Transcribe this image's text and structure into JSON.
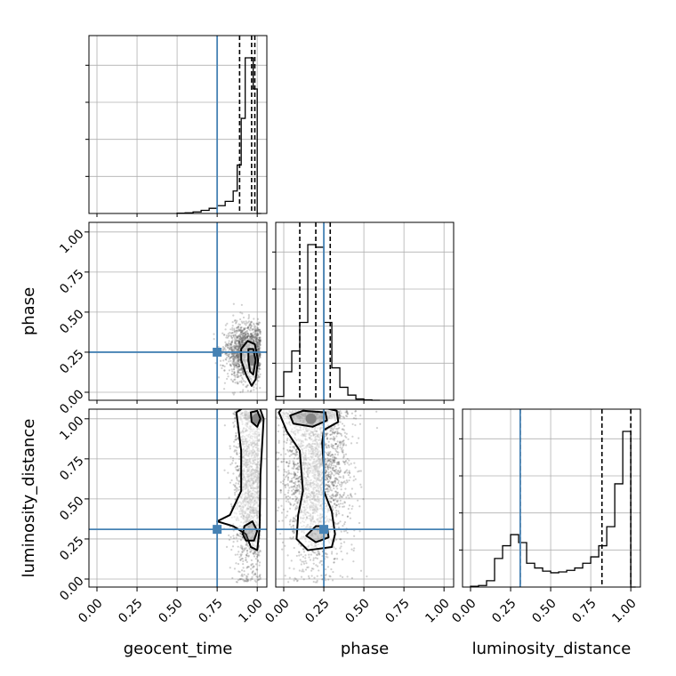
{
  "chart_data": {
    "type": "corner",
    "parameters": [
      "geocent_time",
      "phase",
      "luminosity_distance"
    ],
    "axis_labels": {
      "x": [
        "geocent_time",
        "phase",
        "luminosity_distance"
      ],
      "y": [
        "phase",
        "luminosity_distance"
      ]
    },
    "range": [
      -0.05,
      1.06
    ],
    "tick_values": [
      0.0,
      0.25,
      0.5,
      0.75,
      1.0
    ],
    "tick_labels": [
      "0.00",
      "0.25",
      "0.50",
      "0.75",
      "1.00"
    ],
    "grid": true,
    "truth_color": "#4682b4",
    "truths": {
      "geocent_time": 0.75,
      "phase": 0.25,
      "luminosity_distance": 0.31
    },
    "histograms": {
      "geocent_time": {
        "bin_edges": [
          0.5,
          0.55,
          0.6,
          0.65,
          0.7,
          0.75,
          0.8,
          0.85,
          0.875,
          0.9,
          0.925,
          0.95,
          0.975,
          1.0,
          1.025
        ],
        "counts": [
          0.2,
          0.4,
          0.9,
          1.8,
          3.0,
          4.5,
          7.0,
          13.0,
          28.0,
          55.0,
          90.0,
          90.0,
          72.0,
          0
        ],
        "quantiles": [
          0.89,
          0.965,
          0.985
        ]
      },
      "phase": {
        "bin_edges": [
          -0.05,
          0.0,
          0.05,
          0.1,
          0.15,
          0.2,
          0.25,
          0.3,
          0.35,
          0.4,
          0.45,
          0.5,
          0.55,
          0.6
        ],
        "counts": [
          3,
          22,
          38,
          60,
          120,
          118,
          60,
          25,
          10,
          4,
          1,
          0.3,
          0
        ],
        "quantiles": [
          0.1,
          0.2,
          0.29
        ]
      },
      "luminosity_distance": {
        "bin_edges": [
          0.0,
          0.05,
          0.1,
          0.15,
          0.2,
          0.25,
          0.3,
          0.35,
          0.4,
          0.45,
          0.5,
          0.55,
          0.6,
          0.65,
          0.7,
          0.75,
          0.8,
          0.85,
          0.9,
          0.95,
          1.0,
          1.03
        ],
        "counts": [
          0.5,
          1.0,
          4.0,
          18.0,
          26.0,
          33.0,
          28.0,
          15.0,
          12.0,
          10.0,
          9.0,
          9.5,
          10.5,
          12.0,
          15.0,
          19.0,
          26.0,
          38.0,
          65.0,
          98.0,
          0
        ],
        "quantiles": [
          0.31,
          0.82,
          1.0
        ]
      }
    },
    "scatter_2d": [
      {
        "x": "geocent_time",
        "y": "phase",
        "center": [
          0.93,
          0.25
        ],
        "spread": [
          0.06,
          0.09
        ],
        "points": 1500,
        "density_peak": [
          0.97,
          0.2
        ],
        "contours": [
          [
            [
              0.9,
              0.27
            ],
            [
              0.94,
              0.32
            ],
            [
              0.985,
              0.3
            ],
            [
              1.005,
              0.2
            ],
            [
              0.99,
              0.08
            ],
            [
              0.965,
              0.04
            ],
            [
              0.93,
              0.11
            ],
            [
              0.9,
              0.2
            ]
          ],
          [
            [
              0.945,
              0.27
            ],
            [
              0.975,
              0.27
            ],
            [
              0.99,
              0.2
            ],
            [
              0.975,
              0.11
            ],
            [
              0.955,
              0.13
            ],
            [
              0.945,
              0.2
            ]
          ]
        ]
      },
      {
        "x": "geocent_time",
        "y": "luminosity_distance",
        "center": [
          0.95,
          0.6
        ],
        "spread": [
          0.05,
          0.3
        ],
        "points": 1500,
        "density_peak": [
          1.0,
          1.0
        ],
        "contours": [
          [
            [
              0.87,
              1.04
            ],
            [
              0.93,
              1.08
            ],
            [
              1.015,
              1.07
            ],
            [
              1.04,
              1.0
            ],
            [
              1.02,
              0.65
            ],
            [
              1.015,
              0.32
            ],
            [
              1.0,
              0.18
            ],
            [
              0.96,
              0.2
            ],
            [
              0.93,
              0.28
            ],
            [
              0.85,
              0.33
            ],
            [
              0.75,
              0.36
            ],
            [
              0.83,
              0.4
            ],
            [
              0.9,
              0.55
            ],
            [
              0.9,
              0.8
            ],
            [
              0.88,
              0.96
            ]
          ],
          [
            [
              0.96,
              1.04
            ],
            [
              1.0,
              1.05
            ],
            [
              1.02,
              1.0
            ],
            [
              1.0,
              0.95
            ],
            [
              0.965,
              0.98
            ]
          ],
          [
            [
              0.92,
              0.33
            ],
            [
              0.97,
              0.36
            ],
            [
              1.0,
              0.3
            ],
            [
              0.98,
              0.24
            ],
            [
              0.93,
              0.24
            ],
            [
              0.91,
              0.28
            ]
          ]
        ]
      },
      {
        "x": "phase",
        "y": "luminosity_distance",
        "center": [
          0.2,
          0.7
        ],
        "spread": [
          0.1,
          0.3
        ],
        "points": 2500,
        "density_peak": [
          0.17,
          1.0
        ],
        "contours": [
          [
            [
              -0.03,
              1.04
            ],
            [
              0.0,
              1.08
            ],
            [
              0.2,
              1.08
            ],
            [
              0.33,
              1.05
            ],
            [
              0.34,
              0.98
            ],
            [
              0.25,
              0.93
            ],
            [
              0.24,
              0.85
            ],
            [
              0.25,
              0.7
            ],
            [
              0.25,
              0.55
            ],
            [
              0.3,
              0.42
            ],
            [
              0.32,
              0.28
            ],
            [
              0.3,
              0.2
            ],
            [
              0.15,
              0.18
            ],
            [
              0.08,
              0.25
            ],
            [
              0.09,
              0.4
            ],
            [
              0.12,
              0.55
            ],
            [
              0.1,
              0.8
            ],
            [
              0.02,
              0.92
            ]
          ],
          [
            [
              0.04,
              1.02
            ],
            [
              0.12,
              1.05
            ],
            [
              0.26,
              1.04
            ],
            [
              0.27,
              0.99
            ],
            [
              0.18,
              0.95
            ],
            [
              0.06,
              0.97
            ]
          ],
          [
            [
              0.14,
              0.27
            ],
            [
              0.2,
              0.33
            ],
            [
              0.27,
              0.33
            ],
            [
              0.28,
              0.26
            ],
            [
              0.2,
              0.23
            ]
          ]
        ]
      }
    ]
  }
}
